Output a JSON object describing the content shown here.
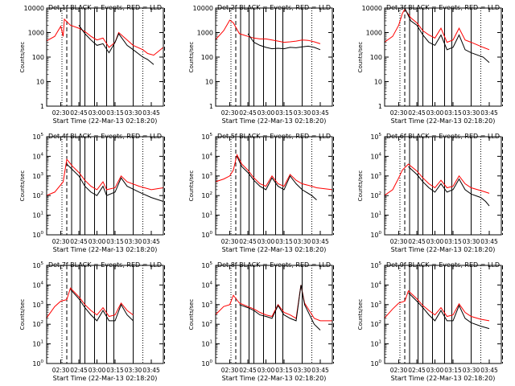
{
  "figure": {
    "time_ticks": [
      "02:30",
      "02:45",
      "03:00",
      "03:15",
      "03:30",
      "03:45"
    ],
    "time_range": [
      "02:18:20",
      "03:55:00"
    ],
    "xlabel": "Start Time (22-Mar-13 02:18:20)",
    "ylabel": "Counts/sec",
    "series_colors": {
      "events": "#000000",
      "lld": "#ff0000"
    },
    "vertical_markers": {
      "dotted": [
        "02:31",
        "03:38"
      ],
      "dashed": [
        "02:35",
        "03:56"
      ],
      "solid": [
        "02:39",
        "02:46",
        "02:50",
        "02:58",
        "03:08",
        "03:14",
        "03:30"
      ]
    }
  },
  "chart_data": [
    {
      "type": "line",
      "title": "Det 1f BLACK = Events, RED = LLD",
      "ylabel": "Counts/sec",
      "y_scale": "log",
      "ylim": [
        1,
        10000
      ],
      "y_tick_labels": [
        "1",
        "10",
        "100",
        "1000",
        "10000"
      ],
      "x": [
        "02:18",
        "02:25",
        "02:30",
        "02:32",
        "02:33",
        "02:38",
        "02:45",
        "02:50",
        "02:55",
        "03:00",
        "03:05",
        "03:10",
        "03:15",
        "03:18",
        "03:25",
        "03:30",
        "03:38",
        "03:42",
        "03:47",
        "03:55"
      ],
      "series": [
        {
          "name": "Events",
          "values": [
            null,
            null,
            null,
            null,
            null,
            null,
            2000,
            900,
            500,
            300,
            350,
            150,
            400,
            900,
            300,
            200,
            100,
            80,
            50,
            null
          ]
        },
        {
          "name": "LLD",
          "values": [
            450,
            700,
            1800,
            700,
            3500,
            2000,
            1500,
            1100,
            700,
            500,
            600,
            250,
            400,
            1000,
            500,
            300,
            200,
            140,
            120,
            250
          ]
        }
      ]
    },
    {
      "type": "line",
      "title": "Det 2f BLACK = Events, RED = LLD",
      "ylabel": "Counts/sec",
      "y_scale": "log",
      "ylim": [
        1,
        10000
      ],
      "y_tick_labels": [
        "1",
        "10",
        "100",
        "1000",
        "10000"
      ],
      "x": [
        "02:18",
        "02:25",
        "02:30",
        "02:33",
        "02:38",
        "02:45",
        "02:50",
        "02:55",
        "03:00",
        "03:05",
        "03:10",
        "03:15",
        "03:20",
        "03:25",
        "03:30",
        "03:35",
        "03:40",
        "03:45"
      ],
      "series": [
        {
          "name": "Events",
          "values": [
            null,
            null,
            null,
            null,
            null,
            900,
            400,
            300,
            250,
            220,
            230,
            220,
            250,
            240,
            260,
            280,
            250,
            200
          ]
        },
        {
          "name": "LLD",
          "values": [
            500,
            1200,
            3200,
            2500,
            900,
            700,
            600,
            550,
            550,
            500,
            450,
            400,
            420,
            450,
            500,
            480,
            420,
            350
          ]
        }
      ]
    },
    {
      "type": "line",
      "title": "Det 3f BLACK = Events, RED = LLD",
      "ylabel": "Counts/sec",
      "y_scale": "log",
      "ylim": [
        1,
        10000
      ],
      "y_tick_labels": [
        "1",
        "10",
        "100",
        "1000",
        "10000"
      ],
      "x": [
        "02:18",
        "02:25",
        "02:30",
        "02:33",
        "02:35",
        "02:40",
        "02:45",
        "02:50",
        "02:55",
        "03:00",
        "03:05",
        "03:10",
        "03:15",
        "03:20",
        "03:25",
        "03:30",
        "03:40",
        "03:45"
      ],
      "series": [
        {
          "name": "Events",
          "values": [
            null,
            null,
            null,
            null,
            10000,
            3000,
            2000,
            800,
            400,
            300,
            800,
            200,
            250,
            800,
            200,
            150,
            100,
            60
          ]
        },
        {
          "name": "LLD",
          "values": [
            400,
            700,
            2000,
            6000,
            9000,
            4000,
            2500,
            1200,
            800,
            600,
            1500,
            400,
            500,
            1500,
            500,
            400,
            250,
            200
          ]
        }
      ]
    },
    {
      "type": "line",
      "title": "Det 4f BLACK = Events, RED = LLD",
      "ylabel": "Counts/sec",
      "y_scale": "log",
      "ylim": [
        1,
        100000
      ],
      "y_tick_labels": [
        "10^0",
        "10^1",
        "10^2",
        "10^3",
        "10^4",
        "10^5"
      ],
      "x": [
        "02:18",
        "02:25",
        "02:32",
        "02:35",
        "02:40",
        "02:45",
        "02:50",
        "02:55",
        "03:00",
        "03:05",
        "03:08",
        "03:15",
        "03:20",
        "03:25",
        "03:35",
        "03:45",
        "03:55"
      ],
      "series": [
        {
          "name": "Events",
          "values": [
            null,
            null,
            null,
            4000,
            2000,
            1000,
            300,
            150,
            100,
            300,
            100,
            150,
            800,
            300,
            150,
            80,
            50
          ]
        },
        {
          "name": "LLD",
          "values": [
            100,
            150,
            500,
            7000,
            3000,
            1500,
            600,
            300,
            200,
            500,
            200,
            250,
            1000,
            500,
            300,
            200,
            250
          ]
        }
      ]
    },
    {
      "type": "line",
      "title": "Det 5f BLACK = Events, RED = LLD",
      "ylabel": "Counts/sec",
      "y_scale": "log",
      "ylim": [
        1,
        100000
      ],
      "y_tick_labels": [
        "10^0",
        "10^1",
        "10^2",
        "10^3",
        "10^4",
        "10^5"
      ],
      "x": [
        "02:18",
        "02:25",
        "02:30",
        "02:33",
        "02:36",
        "02:40",
        "02:45",
        "02:50",
        "02:55",
        "03:00",
        "03:05",
        "03:10",
        "03:15",
        "03:20",
        "03:25",
        "03:30",
        "03:38",
        "03:42",
        "03:55"
      ],
      "series": [
        {
          "name": "Events",
          "values": [
            null,
            null,
            null,
            null,
            10000,
            3000,
            1500,
            600,
            300,
            200,
            800,
            300,
            200,
            1000,
            400,
            200,
            100,
            60,
            null
          ]
        },
        {
          "name": "LLD",
          "values": [
            500,
            700,
            1000,
            2000,
            12000,
            4000,
            2000,
            800,
            400,
            300,
            1000,
            400,
            300,
            1200,
            600,
            400,
            300,
            250,
            200
          ]
        }
      ]
    },
    {
      "type": "line",
      "title": "Det 6f BLACK = Events, RED = LLD",
      "ylabel": "Counts/sec",
      "y_scale": "log",
      "ylim": [
        1,
        100000
      ],
      "y_tick_labels": [
        "10^0",
        "10^1",
        "10^2",
        "10^3",
        "10^4",
        "10^5"
      ],
      "x": [
        "02:18",
        "02:25",
        "02:30",
        "02:33",
        "02:38",
        "02:45",
        "02:50",
        "02:55",
        "03:00",
        "03:05",
        "03:10",
        "03:15",
        "03:20",
        "03:25",
        "03:30",
        "03:38",
        "03:42",
        "03:45"
      ],
      "series": [
        {
          "name": "Events",
          "values": [
            null,
            null,
            null,
            null,
            3000,
            1200,
            500,
            250,
            150,
            400,
            150,
            200,
            700,
            200,
            120,
            80,
            50,
            30
          ]
        },
        {
          "name": "LLD",
          "values": [
            100,
            200,
            800,
            2000,
            4000,
            1800,
            800,
            400,
            250,
            600,
            250,
            300,
            1000,
            400,
            250,
            180,
            150,
            130
          ]
        }
      ]
    },
    {
      "type": "line",
      "title": "Det 7f BLACK = Events, RED = LLD",
      "ylabel": "Counts/sec",
      "y_scale": "log",
      "ylim": [
        1,
        100000
      ],
      "y_tick_labels": [
        "10^0",
        "10^1",
        "10^2",
        "10^3",
        "10^4",
        "10^5"
      ],
      "x": [
        "02:18",
        "02:25",
        "02:30",
        "02:35",
        "02:38",
        "02:45",
        "02:50",
        "02:55",
        "03:00",
        "03:05",
        "03:10",
        "03:15",
        "03:20",
        "03:25",
        "03:30"
      ],
      "series": [
        {
          "name": "Events",
          "values": [
            null,
            null,
            null,
            null,
            6000,
            2000,
            700,
            300,
            150,
            500,
            150,
            150,
            1000,
            300,
            150
          ]
        },
        {
          "name": "LLD",
          "values": [
            200,
            800,
            1500,
            1800,
            7000,
            2500,
            1000,
            500,
            300,
            700,
            250,
            300,
            1200,
            500,
            300
          ]
        }
      ]
    },
    {
      "type": "line",
      "title": "Det 8f BLACK = Events, RED = LLD",
      "ylabel": "Counts/sec",
      "y_scale": "log",
      "ylim": [
        1,
        100000
      ],
      "y_tick_labels": [
        "10^0",
        "10^1",
        "10^2",
        "10^3",
        "10^4",
        "10^5"
      ],
      "x": [
        "02:18",
        "02:25",
        "02:30",
        "02:33",
        "02:38",
        "02:45",
        "02:50",
        "02:55",
        "03:00",
        "03:05",
        "03:10",
        "03:15",
        "03:20",
        "03:25",
        "03:29",
        "03:32",
        "03:40",
        "03:45",
        "03:55"
      ],
      "series": [
        {
          "name": "Events",
          "values": [
            null,
            null,
            null,
            null,
            1000,
            700,
            500,
            300,
            250,
            200,
            900,
            300,
            200,
            150,
            10000,
            1000,
            100,
            50,
            null
          ]
        },
        {
          "name": "LLD",
          "values": [
            300,
            800,
            1000,
            3000,
            1200,
            800,
            600,
            400,
            300,
            250,
            1000,
            400,
            300,
            200,
            10000,
            1200,
            200,
            150,
            150
          ]
        }
      ]
    },
    {
      "type": "line",
      "title": "Det 9f BLACK = Events, RED = LLD",
      "ylabel": "Counts/sec",
      "y_scale": "log",
      "ylim": [
        1,
        100000
      ],
      "y_tick_labels": [
        "10^0",
        "10^1",
        "10^2",
        "10^3",
        "10^4",
        "10^5"
      ],
      "x": [
        "02:18",
        "02:25",
        "02:30",
        "02:35",
        "02:38",
        "02:45",
        "02:50",
        "02:55",
        "03:00",
        "03:05",
        "03:10",
        "03:15",
        "03:20",
        "03:25",
        "03:30",
        "03:38",
        "03:45"
      ],
      "series": [
        {
          "name": "Events",
          "values": [
            null,
            null,
            null,
            null,
            4000,
            1500,
            700,
            300,
            150,
            500,
            150,
            150,
            900,
            200,
            120,
            80,
            60
          ]
        },
        {
          "name": "LLD",
          "values": [
            200,
            600,
            1200,
            1500,
            5000,
            2000,
            900,
            500,
            300,
            700,
            250,
            300,
            1100,
            400,
            250,
            180,
            150
          ]
        }
      ]
    }
  ]
}
